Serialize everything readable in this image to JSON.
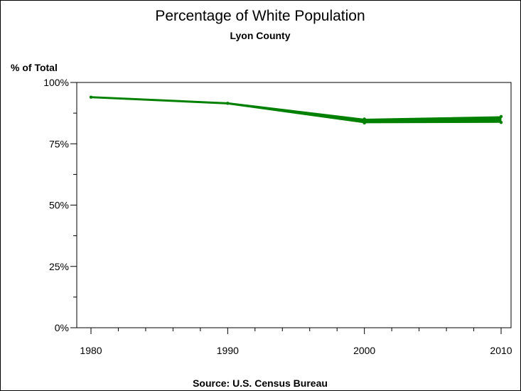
{
  "chart_data": {
    "type": "line",
    "title": "Percentage of White Population",
    "subtitle": "Lyon County",
    "ylabel": "% of Total",
    "xlabel": "",
    "source": "Source: U.S. Census Bureau",
    "x": [
      1980,
      1990,
      2000,
      2010
    ],
    "series": [
      {
        "values": [
          94,
          91.5,
          84.2,
          84.9
        ],
        "band_low": [
          94,
          91.5,
          83.8,
          84.0
        ],
        "band_high": [
          94,
          91.5,
          84.8,
          85.8
        ],
        "color": "#008000"
      }
    ],
    "xlim": [
      1980,
      2010
    ],
    "ylim": [
      0,
      100
    ],
    "x_ticks": [
      1980,
      1990,
      2000,
      2010
    ],
    "x_tick_labels": [
      "1980",
      "1990",
      "2000",
      "2010"
    ],
    "x_minor_step": 2,
    "y_ticks": [
      0,
      25,
      50,
      75,
      100
    ],
    "y_tick_labels": [
      "0%",
      "25%",
      "50%",
      "75%",
      "100%"
    ],
    "y_minor_step": 12.5,
    "grid": false,
    "legend": "none"
  }
}
